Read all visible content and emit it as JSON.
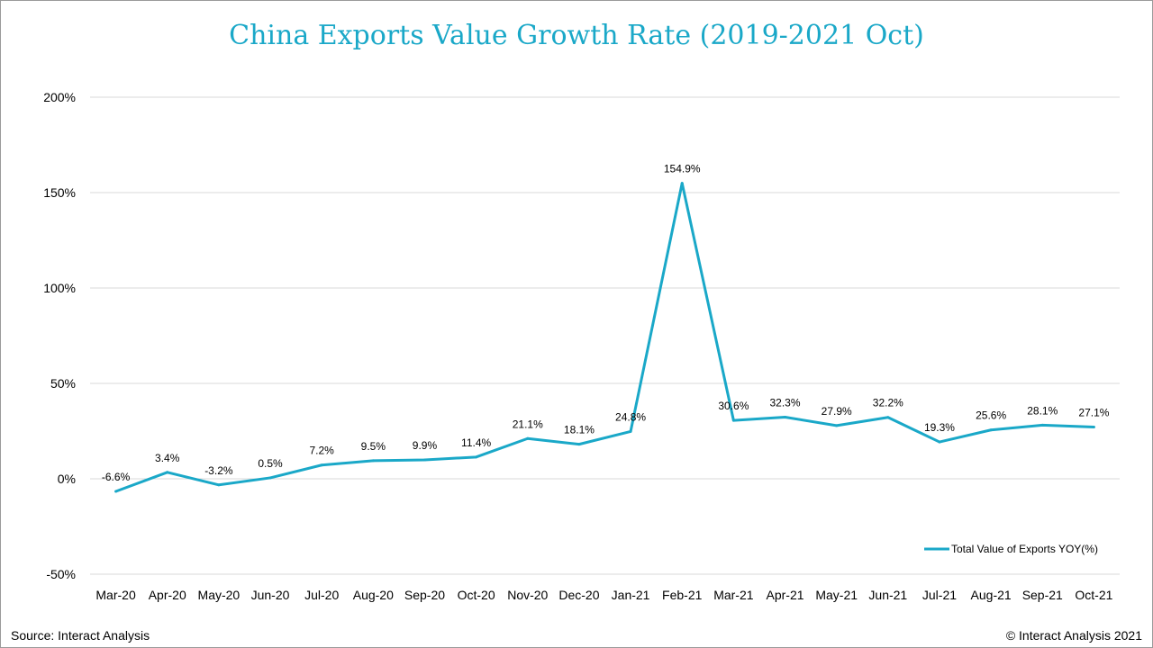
{
  "title": "China Exports Value Growth Rate (2019-2021 Oct)",
  "source": "Source: Interact Analysis",
  "copyright": "© Interact Analysis 2021",
  "colors": {
    "line": "#1aa8c8",
    "grid": "#d9d9d9",
    "title": "#1aa8c8"
  },
  "chart_data": {
    "type": "line",
    "title": "China Exports Value Growth Rate (2019-2021 Oct)",
    "xlabel": "",
    "ylabel": "",
    "ylim": [
      -50,
      200
    ],
    "yticks": [
      -50,
      0,
      50,
      100,
      150,
      200
    ],
    "ytick_labels": [
      "-50%",
      "0%",
      "50%",
      "100%",
      "150%",
      "200%"
    ],
    "grid": true,
    "legend_position": "bottom-right",
    "categories": [
      "Mar-20",
      "Apr-20",
      "May-20",
      "Jun-20",
      "Jul-20",
      "Aug-20",
      "Sep-20",
      "Oct-20",
      "Nov-20",
      "Dec-20",
      "Jan-21",
      "Feb-21",
      "Mar-21",
      "Apr-21",
      "May-21",
      "Jun-21",
      "Jul-21",
      "Aug-21",
      "Sep-21",
      "Oct-21"
    ],
    "series": [
      {
        "name": "Total Value of Exports YOY(%)",
        "values": [
          -6.6,
          3.4,
          -3.2,
          0.5,
          7.2,
          9.5,
          9.9,
          11.4,
          21.1,
          18.1,
          24.8,
          154.9,
          30.6,
          32.3,
          27.9,
          32.2,
          19.3,
          25.6,
          28.1,
          27.1
        ],
        "labels": [
          "-6.6%",
          "3.4%",
          "-3.2%",
          "0.5%",
          "7.2%",
          "9.5%",
          "9.9%",
          "11.4%",
          "21.1%",
          "18.1%",
          "24.8%",
          "154.9%",
          "30.6%",
          "32.3%",
          "27.9%",
          "32.2%",
          "19.3%",
          "25.6%",
          "28.1%",
          "27.1%"
        ]
      }
    ]
  }
}
